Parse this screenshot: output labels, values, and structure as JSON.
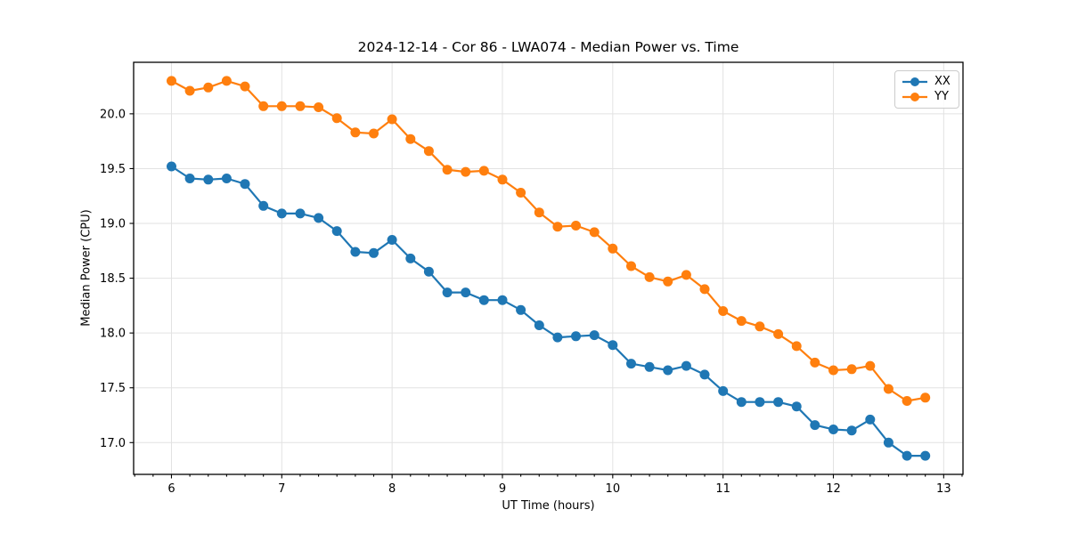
{
  "figure": {
    "background": "#ffffff"
  },
  "chart_data": {
    "type": "line",
    "title": "2024-12-14 - Cor 86 - LWA074 - Median Power vs. Time",
    "xlabel": "UT Time (hours)",
    "ylabel": "Median Power (CPU)",
    "xlim": [
      5.657,
      13.175
    ],
    "ylim": [
      16.71,
      20.47
    ],
    "grid": true,
    "legend_position": "upper-right",
    "x_tick_values": [
      6,
      7,
      8,
      9,
      10,
      11,
      12,
      13
    ],
    "x_tick_labels": [
      "6",
      "7",
      "8",
      "9",
      "10",
      "11",
      "12",
      "13"
    ],
    "x_minor_tick_step": 0.1666667,
    "y_tick_values": [
      17.0,
      17.5,
      18.0,
      18.5,
      19.0,
      19.5,
      20.0
    ],
    "y_tick_labels": [
      "17.0",
      "17.5",
      "18.0",
      "18.5",
      "19.0",
      "19.5",
      "20.0"
    ],
    "x": [
      6.0,
      6.1667,
      6.3333,
      6.5,
      6.6667,
      6.8333,
      7.0,
      7.1667,
      7.3333,
      7.5,
      7.6667,
      7.8333,
      8.0,
      8.1667,
      8.3333,
      8.5,
      8.6667,
      8.8333,
      9.0,
      9.1667,
      9.3333,
      9.5,
      9.6667,
      9.8333,
      10.0,
      10.1667,
      10.3333,
      10.5,
      10.6667,
      10.8333,
      11.0,
      11.1667,
      11.3333,
      11.5,
      11.6667,
      11.8333,
      12.0,
      12.1667,
      12.3333,
      12.5,
      12.6667,
      12.8333
    ],
    "series": [
      {
        "name": "XX",
        "color": "#1f77b4",
        "values": [
          19.52,
          19.41,
          19.4,
          19.41,
          19.36,
          19.16,
          19.09,
          19.09,
          19.05,
          18.93,
          18.74,
          18.73,
          18.85,
          18.68,
          18.56,
          18.37,
          18.37,
          18.3,
          18.3,
          18.21,
          18.07,
          17.96,
          17.97,
          17.98,
          17.89,
          17.72,
          17.69,
          17.66,
          17.7,
          17.62,
          17.47,
          17.37,
          17.37,
          17.37,
          17.33,
          17.16,
          17.12,
          17.11,
          17.21,
          17.0,
          16.88,
          16.88
        ]
      },
      {
        "name": "YY",
        "color": "#ff7f0e",
        "values": [
          20.3,
          20.21,
          20.24,
          20.3,
          20.25,
          20.07,
          20.07,
          20.07,
          20.06,
          19.96,
          19.83,
          19.82,
          19.95,
          19.77,
          19.66,
          19.49,
          19.47,
          19.48,
          19.4,
          19.28,
          19.1,
          18.97,
          18.98,
          18.92,
          18.77,
          18.61,
          18.51,
          18.47,
          18.53,
          18.4,
          18.2,
          18.11,
          18.06,
          17.99,
          17.88,
          17.73,
          17.66,
          17.67,
          17.7,
          17.49,
          17.38,
          17.41
        ]
      }
    ],
    "style": {
      "grid_color": "#e2e2e2",
      "spine_color": "#000000",
      "tick_color": "#000000",
      "text_color": "#000000",
      "line_width": 2.2,
      "marker_radius": 5.5
    }
  }
}
